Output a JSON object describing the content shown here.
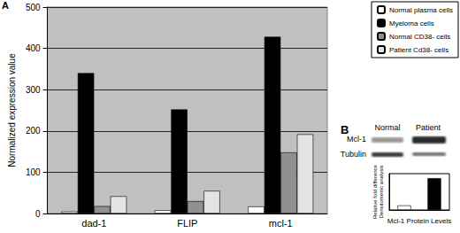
{
  "panels": [
    "A",
    "B"
  ],
  "blot": {
    "columns": [
      "Normal",
      "Patient"
    ],
    "rows": [
      "Mcl-1",
      "Tubulin"
    ]
  },
  "chart_data": [
    {
      "type": "bar",
      "categories": [
        "dad-1",
        "FLIP",
        "mcl-1"
      ],
      "y_label": "Normalized expression value",
      "ylim": [
        0,
        500
      ],
      "yticks": [
        0,
        100,
        200,
        300,
        400,
        500
      ],
      "grid": true,
      "legend": "right",
      "series": [
        {
          "name": "Normal plasma cells",
          "color": "#ffffff",
          "values": [
            5,
            8,
            17
          ]
        },
        {
          "name": "Myeloma cells",
          "color": "#000000",
          "values": [
            340,
            252,
            428
          ]
        },
        {
          "name": "Normal CD38- cells",
          "color": "#909090",
          "values": [
            18,
            30,
            148
          ]
        },
        {
          "name": "Patient Cd38- cells",
          "color": "#e4e4e4",
          "values": [
            42,
            55,
            192
          ]
        }
      ]
    },
    {
      "type": "bar",
      "categories": [
        null,
        null
      ],
      "y_label": [
        "Relative fold difference",
        "Densitometric analysis"
      ],
      "x_label": "Mcl-1 Protein Levels",
      "ylim": [
        0,
        8
      ],
      "tick_labels": false,
      "colors": [
        "#ffffff",
        "#000000"
      ],
      "values": [
        1,
        7
      ]
    }
  ]
}
